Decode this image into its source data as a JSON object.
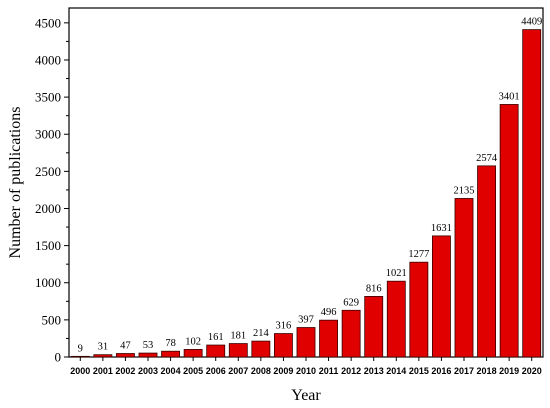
{
  "chart_data": {
    "type": "bar",
    "xlabel": "Year",
    "ylabel": "Number of publications",
    "categories": [
      "2000",
      "2001",
      "2002",
      "2003",
      "2004",
      "2005",
      "2006",
      "2007",
      "2008",
      "2009",
      "2010",
      "2011",
      "2012",
      "2013",
      "2014",
      "2015",
      "2016",
      "2017",
      "2018",
      "2019",
      "2020"
    ],
    "values": [
      9,
      31,
      47,
      53,
      78,
      102,
      161,
      181,
      214,
      316,
      397,
      496,
      629,
      816,
      1021,
      1277,
      1631,
      2135,
      2574,
      3401,
      4409
    ],
    "ylim": [
      0,
      4700
    ],
    "yticks": [
      0,
      500,
      1000,
      1500,
      2000,
      2500,
      3000,
      3500,
      4000,
      4500
    ],
    "grid": false,
    "legend": "none",
    "bar_color": "#e00000",
    "bar_edge_color": "#3a0000"
  }
}
